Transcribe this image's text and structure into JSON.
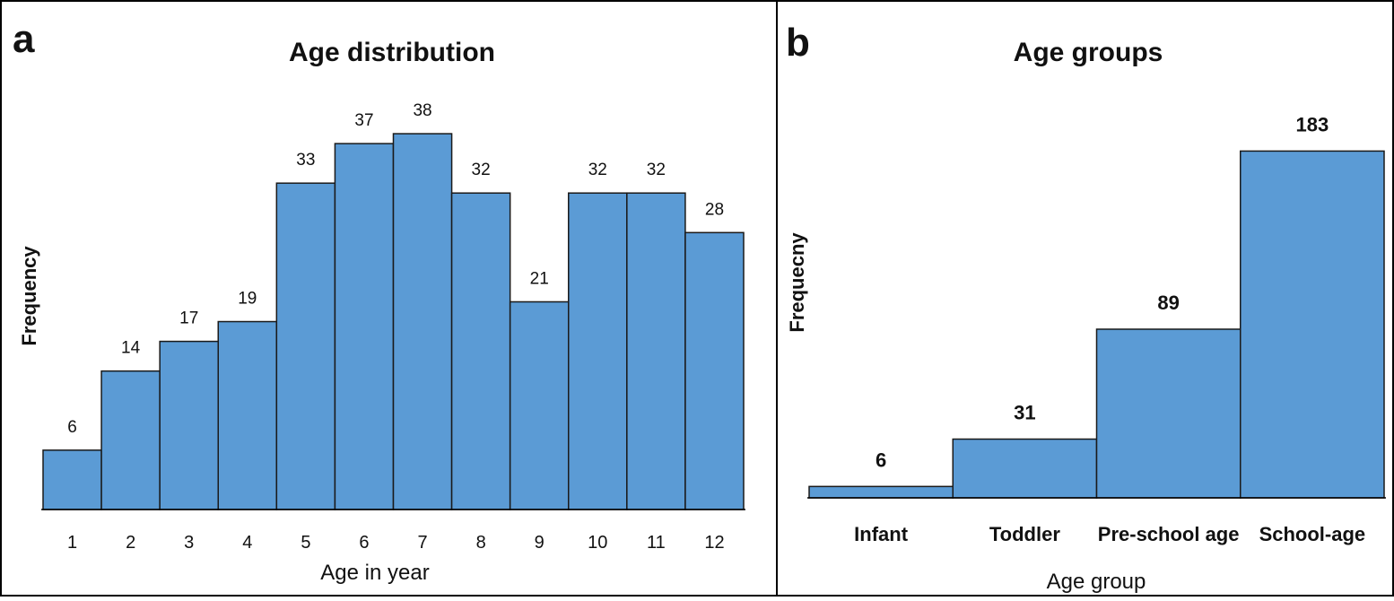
{
  "colors": {
    "bar_fill": "#5b9bd5",
    "bar_stroke": "#1a1a1a",
    "frame": "#000000"
  },
  "chart_data": [
    {
      "panel": "a",
      "type": "bar",
      "title": "Age distribution",
      "xlabel": "Age in year",
      "ylabel": "Frequency",
      "categories": [
        "1",
        "2",
        "3",
        "4",
        "5",
        "6",
        "7",
        "8",
        "9",
        "10",
        "11",
        "12"
      ],
      "values": [
        6,
        14,
        17,
        19,
        33,
        37,
        38,
        32,
        21,
        32,
        32,
        28
      ],
      "ylim": [
        0,
        40
      ],
      "grid": false,
      "legend": "none",
      "bar_gap": 0
    },
    {
      "panel": "b",
      "type": "bar",
      "title": "Age groups",
      "xlabel": "Age group",
      "ylabel": "Frequecny",
      "categories": [
        "Infant",
        "Toddler",
        "Pre-school age",
        "School-age"
      ],
      "values": [
        6,
        31,
        89,
        183
      ],
      "ylim": [
        0,
        200
      ],
      "grid": false,
      "legend": "none",
      "bar_gap": 0
    }
  ]
}
